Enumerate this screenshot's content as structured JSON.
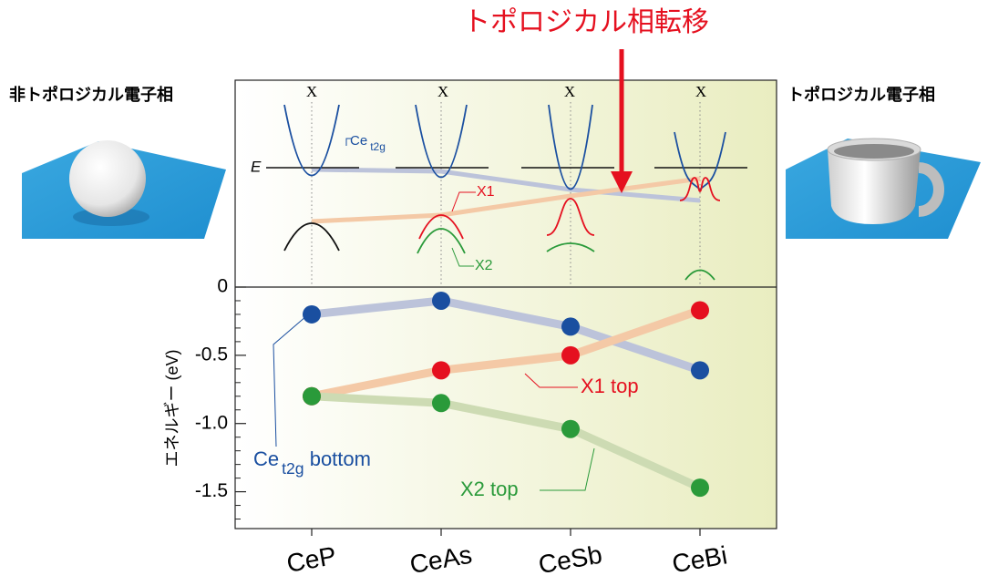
{
  "chart_data": {
    "type": "line",
    "title": "トポロジカル相転移",
    "left_label": "非トポロジカル電子相",
    "right_label": "トポロジカル電子相",
    "ylabel": "エネルギー (eV)",
    "categories": [
      "CeP",
      "CeAs",
      "CeSb",
      "CeBi"
    ],
    "ylim": [
      -1.77,
      0
    ],
    "yticks": [
      0,
      -0.5,
      {
        "value": -1,
        "label": "-1.0"
      },
      -1.5
    ],
    "yticks_minor": [
      -0.1,
      -0.2,
      -0.3,
      -0.4,
      -0.6,
      -0.7,
      -0.8,
      -0.9,
      -1.1,
      -1.2,
      -1.3,
      -1.4,
      -1.6,
      -1.7
    ],
    "series": [
      {
        "name": "Ce t2g bottom",
        "color": "#1a4fa0",
        "line_color": "#bcc3da",
        "values": [
          -0.2,
          -0.1,
          -0.29,
          -0.61
        ]
      },
      {
        "name": "X1 top",
        "color": "#e5101f",
        "line_color": "#f4c9a6",
        "values": [
          -0.8,
          -0.61,
          -0.5,
          -0.17
        ]
      },
      {
        "name": "X2 top",
        "color": "#2a9a3a",
        "line_color": "#cddbb3",
        "values": [
          -0.8,
          -0.85,
          -1.04,
          -1.47
        ]
      }
    ],
    "schematic": {
      "k_label": "X",
      "energy_label": "E",
      "band_ce": "Ce t2g",
      "band_x1": "X1",
      "band_x2": "X2"
    }
  }
}
